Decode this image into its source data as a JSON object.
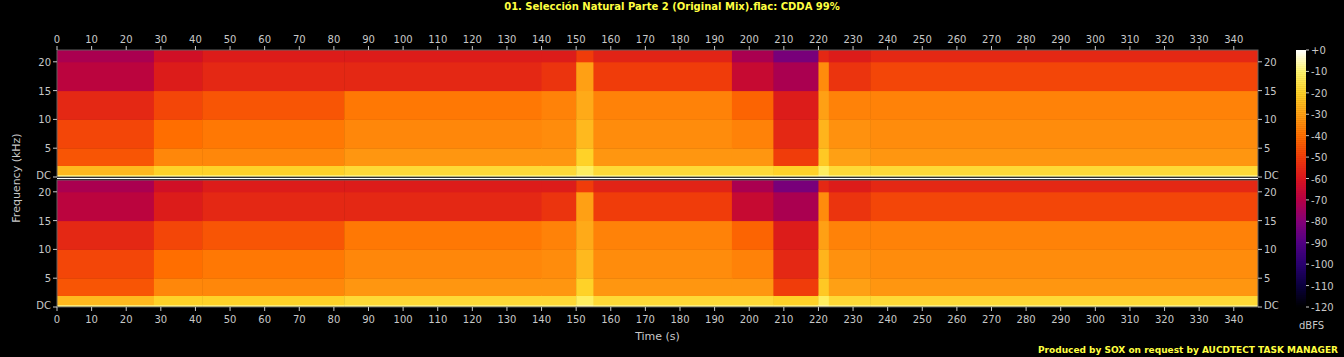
{
  "chart_data": {
    "type": "heatmap",
    "title": "01. Selección Natural Parte 2 (Original Mix).flac: CDDA 99%",
    "x_label": "Time (s)",
    "y_label": "Frequency (kHz)",
    "footer": "Produced by SOX on request by AUCDTECT TASK MANAGER",
    "xlim": [
      0,
      347
    ],
    "xticks": [
      0,
      10,
      20,
      30,
      40,
      50,
      60,
      70,
      80,
      90,
      100,
      110,
      120,
      130,
      140,
      150,
      160,
      170,
      180,
      190,
      200,
      210,
      220,
      230,
      240,
      250,
      260,
      270,
      280,
      290,
      300,
      310,
      320,
      330,
      340
    ],
    "ylim": [
      0,
      22.05
    ],
    "yticks": [
      {
        "value": 0,
        "label": "DC"
      },
      5,
      10,
      15,
      20
    ],
    "x_edges": [
      0,
      28,
      42,
      83,
      140,
      150,
      155,
      195,
      207,
      220,
      223,
      235,
      347
    ],
    "y_edges": [
      0,
      0.4,
      2,
      5,
      10,
      15,
      20,
      22.05
    ],
    "panels": [
      {
        "cells": [
          [
            -8,
            -25,
            -45,
            -48,
            -55,
            -68,
            -72
          ],
          [
            -8,
            -20,
            -35,
            -40,
            -48,
            -58,
            -62
          ],
          [
            -8,
            -20,
            -35,
            -38,
            -45,
            -55,
            -58
          ],
          [
            -8,
            -18,
            -32,
            -35,
            -38,
            -55,
            -58
          ],
          [
            -8,
            -18,
            -32,
            -34,
            -36,
            -52,
            -58
          ],
          [
            -6,
            -12,
            -20,
            -25,
            -28,
            -30,
            -50
          ],
          [
            -8,
            -18,
            -32,
            -34,
            -36,
            -50,
            -56
          ],
          [
            -8,
            -18,
            -32,
            -36,
            -42,
            -65,
            -72
          ],
          [
            -8,
            -20,
            -50,
            -55,
            -58,
            -72,
            -82
          ],
          [
            -6,
            -12,
            -22,
            -26,
            -30,
            -34,
            -55
          ],
          [
            -8,
            -18,
            -30,
            -33,
            -36,
            -52,
            -58
          ],
          [
            -8,
            -18,
            -32,
            -34,
            -36,
            -48,
            -55
          ]
        ]
      },
      {
        "cells": [
          [
            -8,
            -25,
            -45,
            -48,
            -55,
            -68,
            -72
          ],
          [
            -8,
            -20,
            -35,
            -40,
            -48,
            -58,
            -62
          ],
          [
            -8,
            -20,
            -35,
            -38,
            -45,
            -55,
            -58
          ],
          [
            -8,
            -18,
            -32,
            -35,
            -38,
            -55,
            -58
          ],
          [
            -8,
            -18,
            -32,
            -34,
            -36,
            -52,
            -58
          ],
          [
            -6,
            -12,
            -20,
            -25,
            -28,
            -30,
            -50
          ],
          [
            -8,
            -18,
            -32,
            -34,
            -36,
            -50,
            -56
          ],
          [
            -8,
            -18,
            -32,
            -36,
            -42,
            -65,
            -72
          ],
          [
            -8,
            -20,
            -50,
            -55,
            -58,
            -72,
            -82
          ],
          [
            -6,
            -12,
            -22,
            -26,
            -30,
            -34,
            -55
          ],
          [
            -8,
            -18,
            -30,
            -33,
            -36,
            -52,
            -58
          ],
          [
            -8,
            -18,
            -32,
            -34,
            -36,
            -48,
            -55
          ]
        ]
      }
    ],
    "colorbar": {
      "range": [
        -120,
        0
      ],
      "ticks": [
        {
          "value": 0,
          "label": "+0"
        },
        -10,
        -20,
        -30,
        -40,
        -50,
        -60,
        -70,
        -80,
        -90,
        -100,
        -110,
        -120
      ],
      "label": "dBFS"
    }
  }
}
